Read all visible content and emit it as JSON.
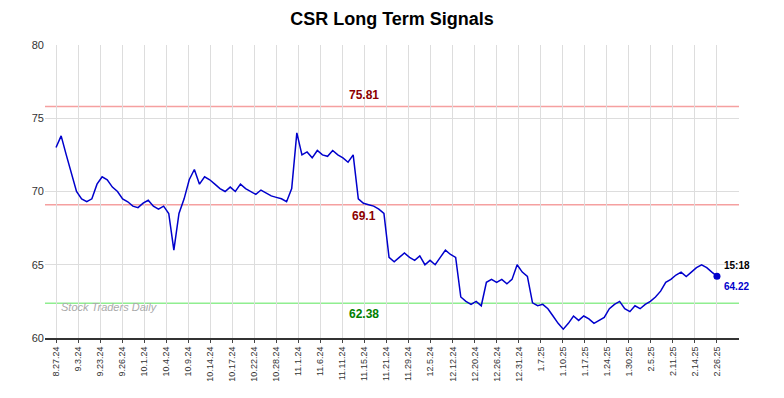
{
  "chart_data": {
    "type": "line",
    "title": "CSR Long Term Signals",
    "color": "#0000cc",
    "marker": "circle",
    "grid": true,
    "xlim": [
      -0.5,
      31
    ],
    "xticks": [
      {
        "value": 0,
        "label": "8.27.24"
      },
      {
        "value": 1,
        "label": "9.3.24"
      },
      {
        "value": 2,
        "label": "9.23.24"
      },
      {
        "value": 3,
        "label": "9.26.24"
      },
      {
        "value": 4,
        "label": "10.1.24"
      },
      {
        "value": 5,
        "label": "10.4.24"
      },
      {
        "value": 6,
        "label": "10.9.24"
      },
      {
        "value": 7,
        "label": "10.14.24"
      },
      {
        "value": 8,
        "label": "10.17.24"
      },
      {
        "value": 9,
        "label": "10.22.24"
      },
      {
        "value": 10,
        "label": "10.28.24"
      },
      {
        "value": 11,
        "label": "11.1.24"
      },
      {
        "value": 12,
        "label": "11.6.24"
      },
      {
        "value": 13,
        "label": "11.11.24"
      },
      {
        "value": 14,
        "label": "11.15.24"
      },
      {
        "value": 15,
        "label": "11.21.24"
      },
      {
        "value": 16,
        "label": "11.29.24"
      },
      {
        "value": 17,
        "label": "12.5.24"
      },
      {
        "value": 18,
        "label": "12.12.24"
      },
      {
        "value": 19,
        "label": "12.20.24"
      },
      {
        "value": 20,
        "label": "12.26.24"
      },
      {
        "value": 21,
        "label": "12.31.24"
      },
      {
        "value": 22,
        "label": "1.7.25"
      },
      {
        "value": 23,
        "label": "1.10.25"
      },
      {
        "value": 24,
        "label": "1.17.25"
      },
      {
        "value": 25,
        "label": "1.24.25"
      },
      {
        "value": 26,
        "label": "1.30.25"
      },
      {
        "value": 27,
        "label": "2.5.25"
      },
      {
        "value": 28,
        "label": "2.11.25"
      },
      {
        "value": 29,
        "label": "2.14.25"
      },
      {
        "value": 30,
        "label": "2.26.25"
      }
    ],
    "ylim": [
      60,
      80
    ],
    "yticks": [
      60,
      65,
      70,
      75,
      80
    ],
    "x": [
      0,
      0.2326,
      0.4651,
      0.6977,
      0.9302,
      1.1628,
      1.3953,
      1.6279,
      1.8605,
      2.093,
      2.3256,
      2.5581,
      2.7907,
      3.0233,
      3.2558,
      3.4884,
      3.7209,
      3.9535,
      4.186,
      4.4186,
      4.6512,
      4.8837,
      5.1163,
      5.3488,
      5.5814,
      5.814,
      6.0465,
      6.2791,
      6.5116,
      6.7442,
      6.9767,
      7.2093,
      7.4419,
      7.6744,
      7.907,
      8.1395,
      8.3721,
      8.6047,
      8.8372,
      9.0698,
      9.3023,
      9.5349,
      9.7674,
      10,
      10.2326,
      10.4651,
      10.6977,
      10.9302,
      11.1628,
      11.3953,
      11.6279,
      11.8605,
      12.093,
      12.3256,
      12.5581,
      12.7907,
      13.0233,
      13.2558,
      13.4884,
      13.7209,
      13.9535,
      14.186,
      14.4186,
      14.6512,
      14.8837,
      15.1163,
      15.3488,
      15.5814,
      15.814,
      16.0465,
      16.2791,
      16.5116,
      16.7442,
      16.9767,
      17.2093,
      17.4419,
      17.6744,
      17.907,
      18.1395,
      18.3721,
      18.6047,
      18.8372,
      19.0698,
      19.3023,
      19.5349,
      19.7674,
      20,
      20.2326,
      20.4651,
      20.6977,
      20.9302,
      21.1628,
      21.3953,
      21.6279,
      21.8605,
      22.093,
      22.3256,
      22.5581,
      22.7907,
      23.0233,
      23.2558,
      23.4884,
      23.7209,
      23.9535,
      24.186,
      24.4186,
      24.6512,
      24.8837,
      25.1163,
      25.3488,
      25.5814,
      25.814,
      26.0465,
      26.2791,
      26.5116,
      26.7442,
      26.9767,
      27.2093,
      27.4419,
      27.6744,
      27.907,
      28.1395,
      28.3721,
      28.6047,
      28.8372,
      29.0698,
      29.3023,
      29.5349,
      29.7674,
      30
    ],
    "values": [
      73.0,
      73.8,
      72.5,
      71.2,
      70.0,
      69.5,
      69.3,
      69.5,
      70.5,
      71.0,
      70.8,
      70.3,
      70.0,
      69.5,
      69.3,
      69.0,
      68.9,
      69.2,
      69.4,
      69.0,
      68.8,
      69.0,
      68.5,
      66.0,
      68.5,
      69.5,
      70.8,
      71.5,
      70.5,
      71.0,
      70.8,
      70.5,
      70.2,
      70.0,
      70.3,
      70.0,
      70.5,
      70.2,
      70.0,
      69.8,
      70.1,
      69.9,
      69.7,
      69.6,
      69.5,
      69.3,
      70.2,
      74.0,
      72.5,
      72.7,
      72.3,
      72.8,
      72.5,
      72.4,
      72.8,
      72.5,
      72.3,
      72.0,
      72.5,
      69.5,
      69.2,
      69.1,
      69.0,
      68.8,
      68.5,
      65.5,
      65.2,
      65.5,
      65.8,
      65.5,
      65.3,
      65.6,
      65.0,
      65.3,
      65.0,
      65.5,
      66.0,
      65.7,
      65.5,
      62.8,
      62.5,
      62.3,
      62.5,
      62.2,
      63.8,
      64.0,
      63.8,
      64.0,
      63.7,
      64.0,
      65.0,
      64.5,
      64.2,
      62.4,
      62.2,
      62.3,
      62.0,
      61.5,
      61.0,
      60.6,
      61.0,
      61.5,
      61.2,
      61.5,
      61.3,
      61.0,
      61.2,
      61.4,
      62.0,
      62.3,
      62.5,
      62.0,
      61.8,
      62.2,
      62.0,
      62.3,
      62.5,
      62.8,
      63.2,
      63.8,
      64.0,
      64.3,
      64.5,
      64.2,
      64.5,
      64.8,
      65.0,
      64.8,
      64.5,
      64.22
    ],
    "hlines": [
      {
        "value": 75.81,
        "color": "#f5a0a0",
        "label": "75.81",
        "label_color": "#8b0000",
        "label_side": "above"
      },
      {
        "value": 69.1,
        "color": "#f5a0a0",
        "label": "69.1",
        "label_color": "#8b0000",
        "label_side": "below"
      },
      {
        "value": 62.38,
        "color": "#90ee90",
        "label": "62.38",
        "label_color": "#008000",
        "label_side": "below"
      }
    ],
    "end_annotations": [
      {
        "text": "15:18",
        "color": "#000000",
        "side": "above"
      },
      {
        "text": "64.22",
        "color": "#0000cc",
        "side": "below"
      }
    ],
    "watermark": "Stock Traders Daily"
  }
}
